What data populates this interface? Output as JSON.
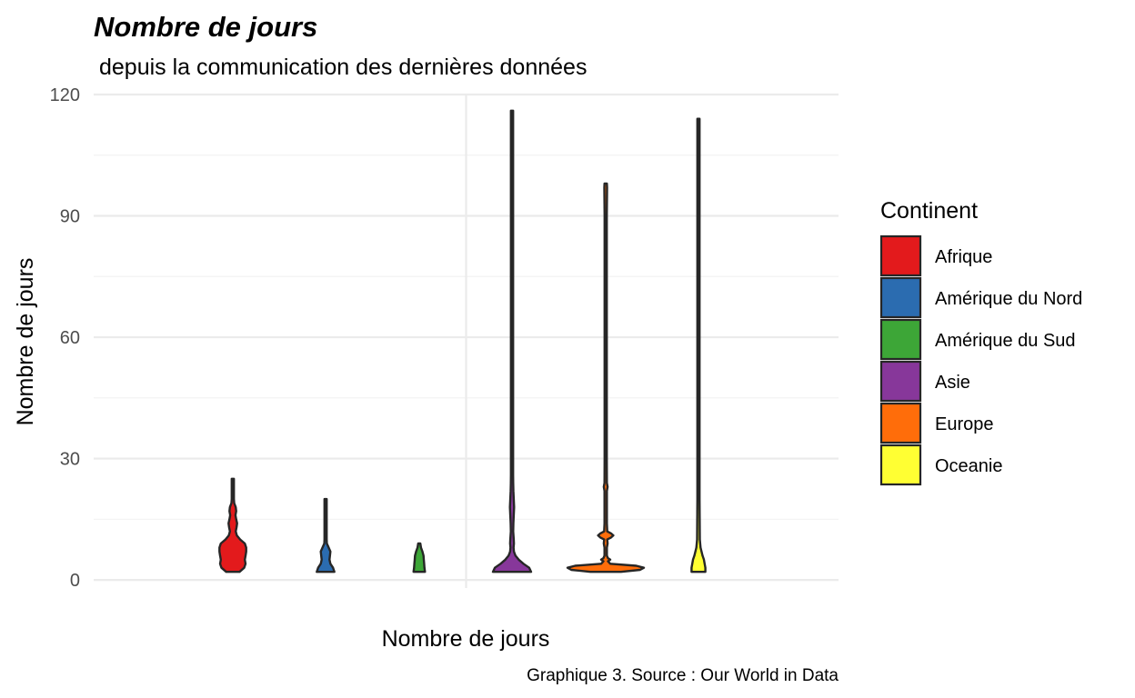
{
  "chart_data": {
    "type": "violin",
    "title": "Nombre de jours",
    "subtitle": "depuis la communication des dernières données",
    "caption": "Graphique 3. Source : Our World in Data",
    "xlabel": "Nombre de jours",
    "ylabel": "Nombre de jours",
    "ylim": [
      -2,
      120
    ],
    "y_ticks": [
      "0",
      "30",
      "60",
      "90",
      "120"
    ],
    "grid": true,
    "legend": {
      "title": "Continent",
      "position": "right",
      "items": [
        {
          "label": "Afrique",
          "color": "#e31a1c"
        },
        {
          "label": "Amérique du Nord",
          "color": "#2b6cb0"
        },
        {
          "label": "Amérique du Sud",
          "color": "#3da637"
        },
        {
          "label": "Asie",
          "color": "#87379a"
        },
        {
          "label": "Europe",
          "color": "#ff6d0a"
        },
        {
          "label": "Oceanie",
          "color": "#ffff33"
        }
      ]
    },
    "series": [
      {
        "name": "Afrique",
        "color": "#e31a1c",
        "min": 2,
        "max": 25,
        "density": [
          [
            2,
            0.5
          ],
          [
            3,
            0.85
          ],
          [
            4,
            0.95
          ],
          [
            5,
            0.9
          ],
          [
            6,
            0.95
          ],
          [
            7,
            1.0
          ],
          [
            8,
            1.0
          ],
          [
            9,
            0.9
          ],
          [
            10,
            0.55
          ],
          [
            11,
            0.3
          ],
          [
            12,
            0.22
          ],
          [
            13,
            0.28
          ],
          [
            14,
            0.32
          ],
          [
            15,
            0.25
          ],
          [
            16,
            0.2
          ],
          [
            17,
            0.25
          ],
          [
            18,
            0.22
          ],
          [
            19,
            0.1
          ],
          [
            20,
            0.08
          ],
          [
            22,
            0.07
          ],
          [
            24,
            0.06
          ],
          [
            25,
            0.05
          ]
        ]
      },
      {
        "name": "Amérique du Nord",
        "color": "#2b6cb0",
        "min": 2,
        "max": 20,
        "density": [
          [
            2,
            1.0
          ],
          [
            3,
            0.85
          ],
          [
            4,
            0.55
          ],
          [
            5,
            0.45
          ],
          [
            6,
            0.5
          ],
          [
            7,
            0.55
          ],
          [
            8,
            0.35
          ],
          [
            9,
            0.15
          ],
          [
            10,
            0.09
          ],
          [
            12,
            0.06
          ],
          [
            14,
            0.05
          ],
          [
            16,
            0.05
          ],
          [
            18,
            0.05
          ],
          [
            20,
            0.04
          ]
        ]
      },
      {
        "name": "Amérique du Sud",
        "color": "#3da637",
        "min": 2,
        "max": 9,
        "density": [
          [
            2,
            1.0
          ],
          [
            3,
            0.9
          ],
          [
            4,
            0.85
          ],
          [
            5,
            0.8
          ],
          [
            6,
            0.75
          ],
          [
            7,
            0.55
          ],
          [
            8,
            0.3
          ],
          [
            9,
            0.1
          ]
        ]
      },
      {
        "name": "Asie",
        "color": "#87379a",
        "min": 2,
        "max": 116,
        "density": [
          [
            2,
            1.0
          ],
          [
            3,
            0.9
          ],
          [
            4,
            0.6
          ],
          [
            5,
            0.35
          ],
          [
            6,
            0.18
          ],
          [
            7,
            0.1
          ],
          [
            8,
            0.08
          ],
          [
            9,
            0.1
          ],
          [
            10,
            0.09
          ],
          [
            12,
            0.06
          ],
          [
            14,
            0.07
          ],
          [
            16,
            0.09
          ],
          [
            18,
            0.11
          ],
          [
            20,
            0.09
          ],
          [
            22,
            0.07
          ],
          [
            24,
            0.06
          ],
          [
            26,
            0.05
          ],
          [
            28,
            0.04
          ],
          [
            30,
            0.03
          ],
          [
            40,
            0.03
          ],
          [
            60,
            0.03
          ],
          [
            80,
            0.03
          ],
          [
            100,
            0.03
          ],
          [
            116,
            0.025
          ]
        ]
      },
      {
        "name": "Europe",
        "color": "#ff6d0a",
        "min": 2,
        "max": 98,
        "density": [
          [
            2,
            0.4
          ],
          [
            2.5,
            0.9
          ],
          [
            3,
            1.0
          ],
          [
            3.5,
            0.8
          ],
          [
            4,
            0.12
          ],
          [
            4.6,
            0.06
          ],
          [
            5,
            0.12
          ],
          [
            5.4,
            0.06
          ],
          [
            6,
            0.03
          ],
          [
            8,
            0.03
          ],
          [
            9,
            0.05
          ],
          [
            10,
            0.04
          ],
          [
            10.5,
            0.14
          ],
          [
            11,
            0.2
          ],
          [
            11.5,
            0.14
          ],
          [
            12,
            0.04
          ],
          [
            14,
            0.03
          ],
          [
            22,
            0.03
          ],
          [
            23,
            0.05
          ],
          [
            24,
            0.03
          ],
          [
            30,
            0.025
          ],
          [
            60,
            0.025
          ],
          [
            90,
            0.025
          ],
          [
            97,
            0.035
          ],
          [
            98,
            0.03
          ]
        ]
      },
      {
        "name": "Oceanie",
        "color": "#ffff33",
        "min": 2,
        "max": 114,
        "density": [
          [
            2,
            1.0
          ],
          [
            3,
            1.0
          ],
          [
            4,
            0.9
          ],
          [
            5,
            0.8
          ],
          [
            6,
            0.6
          ],
          [
            8,
            0.3
          ],
          [
            10,
            0.2
          ],
          [
            20,
            0.12
          ],
          [
            40,
            0.1
          ],
          [
            60,
            0.1
          ],
          [
            80,
            0.1
          ],
          [
            100,
            0.1
          ],
          [
            114,
            0.1
          ]
        ]
      }
    ]
  }
}
